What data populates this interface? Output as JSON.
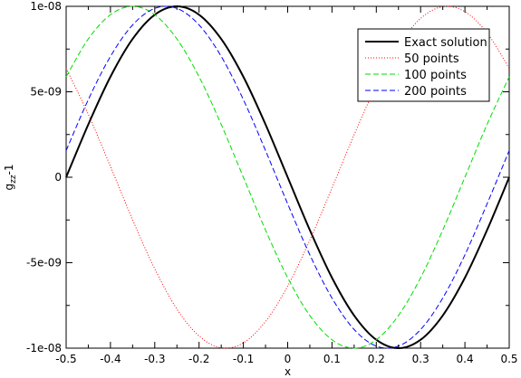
{
  "chart_data": {
    "type": "line",
    "title": "",
    "xlabel": "x",
    "ylabel_main": "g",
    "ylabel_sub": "zz",
    "ylabel_suffix": "-1",
    "xlim": [
      -0.5,
      0.5
    ],
    "ylim": [
      -1e-08,
      1e-08
    ],
    "x_ticks": [
      -0.5,
      -0.4,
      -0.3,
      -0.2,
      -0.1,
      0,
      0.1,
      0.2,
      0.3,
      0.4,
      0.5
    ],
    "x_tick_labels": [
      "-0.5",
      "-0.4",
      "-0.3",
      "-0.2",
      "-0.1",
      "0",
      "0.1",
      "0.2",
      "0.3",
      "0.4",
      "0.5"
    ],
    "y_ticks": [
      -1e-08,
      -5e-09,
      0,
      5e-09,
      1e-08
    ],
    "y_tick_labels": [
      "-1e-08",
      "-5e-09",
      "0",
      "5e-09",
      "1e-08"
    ],
    "grid": false,
    "legend_position": "top-right",
    "series": [
      {
        "name": "Exact solution",
        "color": "#000000",
        "style": "solid",
        "x": [
          -0.5,
          -0.45,
          -0.4,
          -0.35,
          -0.3,
          -0.25,
          -0.2,
          -0.15,
          -0.1,
          -0.05,
          0,
          0.05,
          0.1,
          0.15,
          0.2,
          0.25,
          0.3,
          0.35,
          0.4,
          0.45,
          0.5
        ],
        "y": [
          0,
          3.09e-09,
          5.88e-09,
          8.09e-09,
          9.51e-09,
          1e-08,
          9.51e-09,
          8.09e-09,
          5.88e-09,
          3.09e-09,
          0,
          -3.09e-09,
          -5.88e-09,
          -8.09e-09,
          -9.51e-09,
          -1e-08,
          -9.51e-09,
          -8.09e-09,
          -5.88e-09,
          -3.09e-09,
          0
        ]
      },
      {
        "name": "50 points",
        "color": "#ff0000",
        "style": "dotted",
        "x": [
          -0.5,
          -0.45,
          -0.4,
          -0.35,
          -0.3,
          -0.25,
          -0.2,
          -0.15,
          -0.1,
          -0.05,
          0,
          0.05,
          0.1,
          0.15,
          0.2,
          0.25,
          0.3,
          0.35,
          0.4,
          0.45,
          0.5
        ],
        "y": [
          6.37e-09,
          3.68e-09,
          6.3e-10,
          -2.49e-09,
          -5.36e-09,
          -7.71e-09,
          -9.29e-09,
          -9.98e-09,
          -9.69e-09,
          -8.44e-09,
          -6.37e-09,
          -3.68e-09,
          -6.3e-10,
          2.49e-09,
          5.36e-09,
          7.71e-09,
          9.29e-09,
          9.98e-09,
          9.69e-09,
          8.44e-09,
          6.37e-09
        ]
      },
      {
        "name": "100 points",
        "color": "#00dd00",
        "style": "dashed",
        "x": [
          -0.5,
          -0.45,
          -0.4,
          -0.35,
          -0.3,
          -0.25,
          -0.2,
          -0.15,
          -0.1,
          -0.05,
          0,
          0.05,
          0.1,
          0.15,
          0.2,
          0.25,
          0.3,
          0.35,
          0.4,
          0.45,
          0.5
        ],
        "y": [
          5.88e-09,
          8.09e-09,
          9.51e-09,
          1e-08,
          9.51e-09,
          8.09e-09,
          5.88e-09,
          3.09e-09,
          0,
          -3.09e-09,
          -5.88e-09,
          -8.09e-09,
          -9.51e-09,
          -1e-08,
          -9.51e-09,
          -8.09e-09,
          -5.88e-09,
          -3.09e-09,
          0,
          3.09e-09,
          5.88e-09
        ]
      },
      {
        "name": "200 points",
        "color": "#0000ff",
        "style": "dashed",
        "x": [
          -0.5,
          -0.45,
          -0.4,
          -0.35,
          -0.3,
          -0.25,
          -0.2,
          -0.15,
          -0.1,
          -0.05,
          0,
          0.05,
          0.1,
          0.15,
          0.2,
          0.25,
          0.3,
          0.35,
          0.4,
          0.45,
          0.5
        ],
        "y": [
          1.56e-09,
          4.54e-09,
          7.07e-09,
          8.91e-09,
          9.88e-09,
          9.88e-09,
          8.91e-09,
          7.07e-09,
          4.54e-09,
          1.56e-09,
          -1.56e-09,
          -4.54e-09,
          -7.07e-09,
          -8.91e-09,
          -9.88e-09,
          -9.88e-09,
          -8.91e-09,
          -7.07e-09,
          -4.54e-09,
          -1.56e-09,
          1.56e-09
        ]
      }
    ]
  }
}
